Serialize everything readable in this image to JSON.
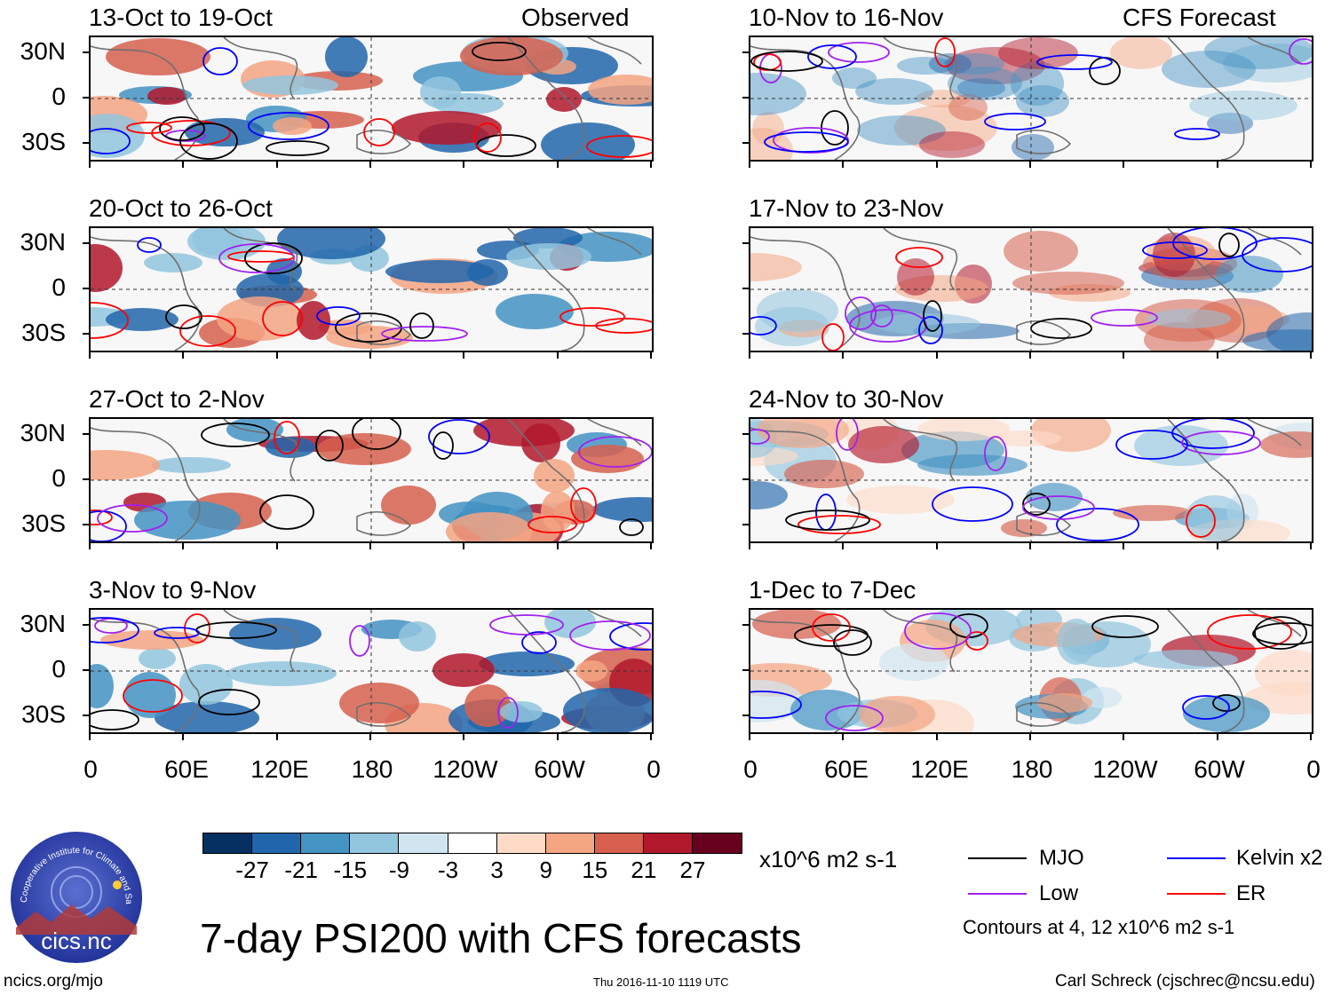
{
  "panels": [
    {
      "id": "p1",
      "title": "13-Oct to 19-Oct",
      "tag": "Observed"
    },
    {
      "id": "p2",
      "title": "20-Oct to 26-Oct",
      "tag": ""
    },
    {
      "id": "p3",
      "title": "27-Oct to 2-Nov",
      "tag": ""
    },
    {
      "id": "p4",
      "title": "3-Nov to 9-Nov",
      "tag": ""
    },
    {
      "id": "p5",
      "title": "10-Nov to 16-Nov",
      "tag": "CFS Forecast"
    },
    {
      "id": "p6",
      "title": "17-Nov to 23-Nov",
      "tag": ""
    },
    {
      "id": "p7",
      "title": "24-Nov to 30-Nov",
      "tag": ""
    },
    {
      "id": "p8",
      "title": "1-Dec to 7-Dec",
      "tag": ""
    }
  ],
  "lat_labels": [
    "30N",
    "0",
    "30S"
  ],
  "lon_labels": [
    "0",
    "60E",
    "120E",
    "180",
    "120W",
    "60W",
    "0"
  ],
  "colorbar": {
    "colors": [
      "#053061",
      "#2166ac",
      "#4393c3",
      "#92c5de",
      "#d1e5f0",
      "#ffffff",
      "#fddbc7",
      "#f4a582",
      "#d6604d",
      "#b2182b",
      "#67001f"
    ],
    "ticks": [
      "-27",
      "-21",
      "-15",
      "-9",
      "-3",
      "3",
      "9",
      "15",
      "21",
      "27"
    ],
    "units": "x10^6 m2 s-1"
  },
  "legend": {
    "items": [
      {
        "label": "MJO",
        "color": "#000000"
      },
      {
        "label": "Kelvin x2",
        "color": "#0000ff"
      },
      {
        "label": "Low",
        "color": "#a020f0"
      },
      {
        "label": "ER",
        "color": "#ff0000"
      }
    ],
    "contours_note": "Contours at 4, 12 x10^6 m2 s-1"
  },
  "main_title": "7-day PSI200 with CFS forecasts",
  "footer": {
    "left": "ncics.org/mjo",
    "center": "Thu 2016-11-10 1119 UTC",
    "right": "Carl Schreck (cjschrec@ncsu.edu)"
  },
  "logo": {
    "arc_text": "Cooperative Institute for Climate and Satellites",
    "name": "cics.nc"
  }
}
